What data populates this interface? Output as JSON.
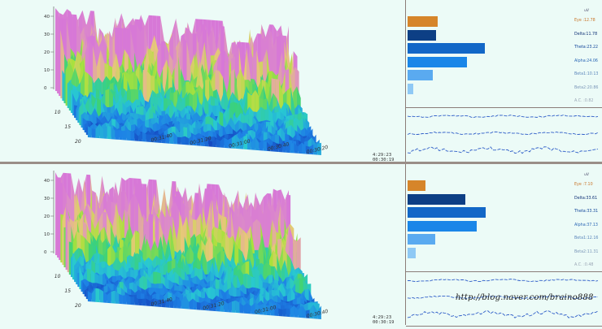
{
  "app": {
    "watermark": "http://blog.naver.com/braino888"
  },
  "panels": [
    {
      "id": "top",
      "spectrogram": {
        "yticks": [
          "40",
          "30",
          "20",
          "10",
          "0"
        ],
        "freq_ticks": [
          "10",
          "15",
          "20"
        ],
        "time_ticks": [
          "00:31:40",
          "00:31:20",
          "00:31:00",
          "00:30:40",
          "00:30:20"
        ],
        "stamp": [
          "4:29:23",
          "00:30:19"
        ]
      },
      "bands": {
        "title": "uV",
        "items": [
          {
            "label": "Eye",
            "value": "12.78",
            "text": "Eye  :12.78",
            "color": "#d6852a",
            "label_color": "#c9752a",
            "fraction": 0.155
          },
          {
            "label": "Delta",
            "value": "11.78",
            "text": "Delta:11.78",
            "color": "#0d3f85",
            "label_color": "#0d2f75",
            "fraction": 0.145
          },
          {
            "label": "Theta",
            "value": "23.22",
            "text": "Theta:23.22",
            "color": "#1267c7",
            "label_color": "#12469a",
            "fraction": 0.395
          },
          {
            "label": "Alpha",
            "value": "24.06",
            "text": "Alpha:24.06",
            "color": "#1a86e8",
            "label_color": "#2a66b5",
            "fraction": 0.305
          },
          {
            "label": "Beta1",
            "value": "10.13",
            "text": "Beta1:10.13",
            "color": "#5aaaf0",
            "label_color": "#5b86bb",
            "fraction": 0.13
          },
          {
            "label": "Beta2",
            "value": "20.86",
            "text": "Beta2:20.86",
            "color": "#8fc9f5",
            "label_color": "#7a96b8",
            "fraction": 0.03
          },
          {
            "label": "A.C.",
            "value": "0.82",
            "text": "A.C. :0.82",
            "color": "#b9dff8",
            "label_color": "#9aa6b5",
            "fraction": 0.0
          }
        ]
      }
    },
    {
      "id": "bottom",
      "spectrogram": {
        "yticks": [
          "40",
          "30",
          "20",
          "10",
          "0"
        ],
        "freq_ticks": [
          "10",
          "15",
          "20"
        ],
        "time_ticks": [
          "00:31:40",
          "00:31:20",
          "00:31:00",
          "00:30:40"
        ],
        "stamp": [
          "4:29:23",
          "00:30:19"
        ]
      },
      "bands": {
        "title": "uV",
        "items": [
          {
            "label": "Eye",
            "value": "7.10",
            "text": "Eye  :7.10",
            "color": "#d6852a",
            "label_color": "#c9752a",
            "fraction": 0.09
          },
          {
            "label": "Delta",
            "value": "33.61",
            "text": "Delta:33.61",
            "color": "#0d3f85",
            "label_color": "#0d2f75",
            "fraction": 0.295
          },
          {
            "label": "Theta",
            "value": "33.31",
            "text": "Theta:33.31",
            "color": "#1267c7",
            "label_color": "#12469a",
            "fraction": 0.4
          },
          {
            "label": "Alpha",
            "value": "37.13",
            "text": "Alpha:37.13",
            "color": "#1a86e8",
            "label_color": "#2a66b5",
            "fraction": 0.355
          },
          {
            "label": "Beta1",
            "value": "12.16",
            "text": "Beta1:12.16",
            "color": "#5aaaf0",
            "label_color": "#5b86bb",
            "fraction": 0.14
          },
          {
            "label": "Beta2",
            "value": "11.31",
            "text": "Beta2:11.31",
            "color": "#8fc9f5",
            "label_color": "#7a96b8",
            "fraction": 0.04
          },
          {
            "label": "A.C.",
            "value": "0.48",
            "text": "A.C. :0.48",
            "color": "#b9dff8",
            "label_color": "#9aa6b5",
            "fraction": 0.0
          }
        ]
      }
    }
  ]
}
